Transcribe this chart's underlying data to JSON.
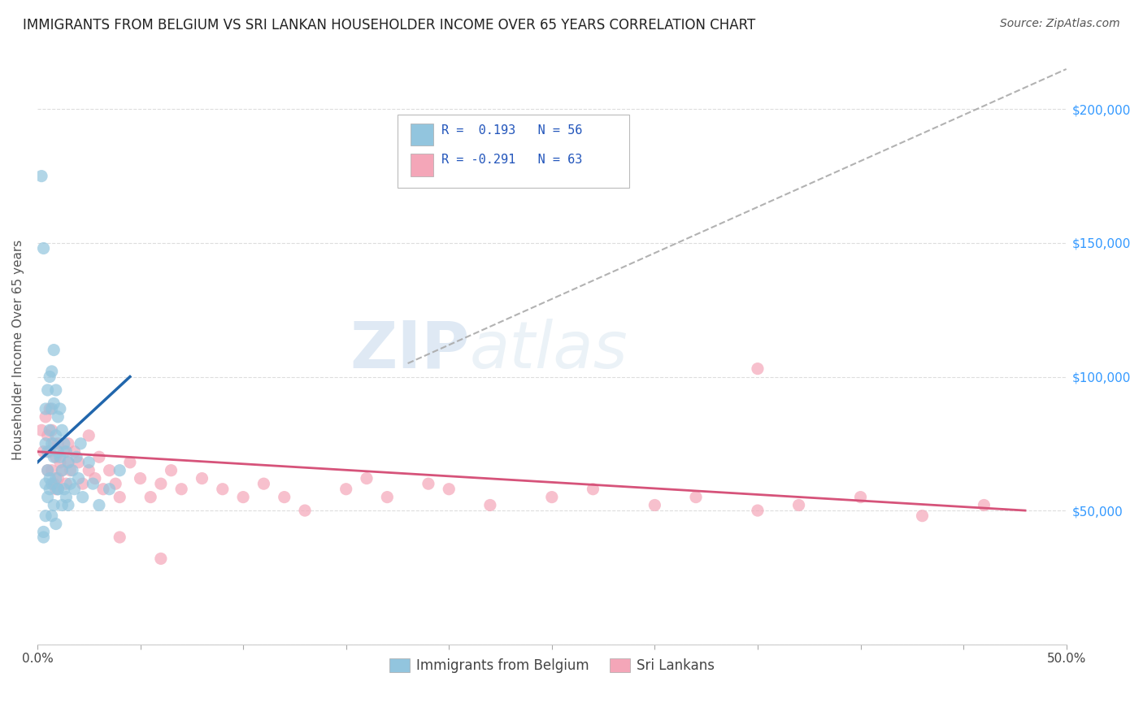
{
  "title": "IMMIGRANTS FROM BELGIUM VS SRI LANKAN HOUSEHOLDER INCOME OVER 65 YEARS CORRELATION CHART",
  "source": "Source: ZipAtlas.com",
  "ylabel": "Householder Income Over 65 years",
  "watermark": "ZIPatlas",
  "legend1_label": "Immigrants from Belgium",
  "legend2_label": "Sri Lankans",
  "R1": 0.193,
  "N1": 56,
  "R2": -0.291,
  "N2": 63,
  "xlim": [
    0.0,
    0.5
  ],
  "ylim": [
    0,
    220000
  ],
  "yticks": [
    0,
    50000,
    100000,
    150000,
    200000
  ],
  "ytick_labels": [
    "",
    "$50,000",
    "$100,000",
    "$150,000",
    "$200,000"
  ],
  "color_blue": "#92c5de",
  "color_pink": "#f4a6b8",
  "color_line_blue": "#2166ac",
  "color_line_pink": "#d6537a",
  "color_dash": "#aaaaaa",
  "background": "#ffffff",
  "bel_line_x0": 0.0,
  "bel_line_y0": 68000,
  "bel_line_x1": 0.045,
  "bel_line_y1": 100000,
  "sri_line_x0": 0.0,
  "sri_line_y0": 72000,
  "sri_line_x1": 0.48,
  "sri_line_y1": 50000,
  "dash_line_x0": 0.18,
  "dash_line_y0": 105000,
  "dash_line_x1": 0.5,
  "dash_line_y1": 215000,
  "belgium_x": [
    0.002,
    0.003,
    0.003,
    0.004,
    0.004,
    0.004,
    0.005,
    0.005,
    0.005,
    0.006,
    0.006,
    0.006,
    0.007,
    0.007,
    0.007,
    0.007,
    0.008,
    0.008,
    0.008,
    0.009,
    0.009,
    0.009,
    0.01,
    0.01,
    0.01,
    0.011,
    0.011,
    0.012,
    0.012,
    0.012,
    0.013,
    0.013,
    0.014,
    0.014,
    0.015,
    0.015,
    0.016,
    0.017,
    0.018,
    0.019,
    0.02,
    0.021,
    0.022,
    0.025,
    0.027,
    0.03,
    0.035,
    0.04,
    0.003,
    0.004,
    0.005,
    0.006,
    0.007,
    0.008,
    0.009,
    0.01
  ],
  "belgium_y": [
    175000,
    148000,
    42000,
    60000,
    75000,
    88000,
    95000,
    72000,
    65000,
    100000,
    80000,
    58000,
    102000,
    88000,
    75000,
    60000,
    110000,
    90000,
    70000,
    95000,
    78000,
    62000,
    85000,
    72000,
    58000,
    88000,
    70000,
    80000,
    65000,
    52000,
    75000,
    58000,
    72000,
    55000,
    68000,
    52000,
    60000,
    65000,
    58000,
    70000,
    62000,
    75000,
    55000,
    68000,
    60000,
    52000,
    58000,
    65000,
    40000,
    48000,
    55000,
    62000,
    48000,
    52000,
    45000,
    58000
  ],
  "srilanka_x": [
    0.002,
    0.003,
    0.004,
    0.005,
    0.005,
    0.006,
    0.006,
    0.007,
    0.007,
    0.008,
    0.008,
    0.009,
    0.009,
    0.01,
    0.01,
    0.011,
    0.012,
    0.013,
    0.014,
    0.015,
    0.015,
    0.016,
    0.018,
    0.02,
    0.022,
    0.025,
    0.025,
    0.028,
    0.03,
    0.032,
    0.035,
    0.038,
    0.04,
    0.045,
    0.05,
    0.055,
    0.06,
    0.065,
    0.07,
    0.08,
    0.09,
    0.1,
    0.11,
    0.12,
    0.13,
    0.15,
    0.16,
    0.17,
    0.19,
    0.2,
    0.22,
    0.25,
    0.27,
    0.3,
    0.32,
    0.35,
    0.37,
    0.4,
    0.43,
    0.46,
    0.35,
    0.04,
    0.06
  ],
  "srilanka_y": [
    80000,
    72000,
    85000,
    78000,
    65000,
    88000,
    72000,
    80000,
    65000,
    75000,
    60000,
    70000,
    58000,
    75000,
    62000,
    68000,
    65000,
    72000,
    60000,
    68000,
    75000,
    65000,
    72000,
    68000,
    60000,
    65000,
    78000,
    62000,
    70000,
    58000,
    65000,
    60000,
    55000,
    68000,
    62000,
    55000,
    60000,
    65000,
    58000,
    62000,
    58000,
    55000,
    60000,
    55000,
    50000,
    58000,
    62000,
    55000,
    60000,
    58000,
    52000,
    55000,
    58000,
    52000,
    55000,
    50000,
    52000,
    55000,
    48000,
    52000,
    103000,
    40000,
    32000
  ]
}
